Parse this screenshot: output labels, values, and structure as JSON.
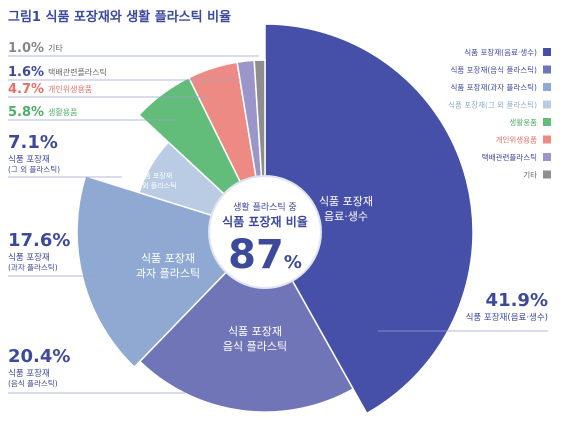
{
  "title": "그림1  식품 포장재와 생활 플라스틱 비율",
  "center": {
    "line1": "생활 플라스틱 중",
    "line2": "식품 포장재 비율",
    "value": "87",
    "unit": "%"
  },
  "chart_data": {
    "type": "pie",
    "title": "그림1  식품 포장재와 생활 플라스틱 비율",
    "slices": [
      {
        "key": "beverage",
        "name": "식품 포장재(음료·생수)",
        "inner_label": [
          "식품 포장재",
          "음료·생수"
        ],
        "callout": [
          "식품 포장재(음료·생수)"
        ],
        "value": 41.9,
        "value_label": "41.9%",
        "color": "#4650a8"
      },
      {
        "key": "food",
        "name": "식품 포장재(음식 플라스틱)",
        "inner_label": [
          "식품 포장재",
          "음식 플라스틱"
        ],
        "callout": [
          "식품 포장재",
          "(음식 플라스틱)"
        ],
        "value": 20.4,
        "value_label": "20.4%",
        "color": "#7075b8"
      },
      {
        "key": "snack",
        "name": "식품 포장재(과자 플라스틱)",
        "inner_label": [
          "식품 포장재",
          "과자 플라스틱"
        ],
        "callout": [
          "식품 포장재",
          "(과자 플라스틱)"
        ],
        "value": 17.6,
        "value_label": "17.6%",
        "color": "#8fa9d2"
      },
      {
        "key": "other_pack",
        "name": "식품 포장재(그 외 플라스틱)",
        "inner_label": [
          "식품 포장재",
          "그 외 플라스틱"
        ],
        "callout": [
          "식품 포장재",
          "(그 외 플라스틱)"
        ],
        "value": 7.1,
        "value_label": "7.1%",
        "color": "#b9cce4"
      },
      {
        "key": "household",
        "name": "생활용품",
        "inner_label": [],
        "callout": [
          "생활용품"
        ],
        "value": 5.8,
        "value_label": "5.8%",
        "color": "#63bd7a"
      },
      {
        "key": "hygiene",
        "name": "개인위생용품",
        "inner_label": [],
        "callout": [
          "개인위생용품"
        ],
        "value": 4.7,
        "value_label": "4.7%",
        "color": "#ee8a84"
      },
      {
        "key": "delivery",
        "name": "택배관련플라스틱",
        "inner_label": [],
        "callout": [
          "택배관련플라스틱"
        ],
        "value": 1.6,
        "value_label": "1.6%",
        "color": "#9b96c9"
      },
      {
        "key": "etc",
        "name": "기타",
        "inner_label": [],
        "callout": [
          "기타"
        ],
        "value": 1.0,
        "value_label": "1.0%",
        "color": "#8e8e8e"
      }
    ],
    "legend": [
      {
        "key": "beverage",
        "label": "식품 포장재(음료·생수)"
      },
      {
        "key": "food",
        "label": "식품 포장재(음식 플라스틱)"
      },
      {
        "key": "snack",
        "label": "식품 포장재(과자 플라스틱)"
      },
      {
        "key": "other_pack",
        "label": "식품 포장재(그 외 플라스틱)"
      },
      {
        "key": "household",
        "label": "생활용품"
      },
      {
        "key": "hygiene",
        "label": "개인위생용품"
      },
      {
        "key": "delivery",
        "label": "택배관련플라스틱"
      },
      {
        "key": "etc",
        "label": "기타"
      }
    ],
    "legend_position": "top-right",
    "colors": {
      "beverage": "#4650a8",
      "food": "#7075b8",
      "snack": "#8fa9d2",
      "other_pack": "#b9cce4",
      "household": "#63bd7a",
      "hygiene": "#ee8a84",
      "delivery": "#9b96c9",
      "etc": "#8e8e8e",
      "value_text": "#3d4a9c",
      "label_text": "#3d4a9c"
    }
  }
}
